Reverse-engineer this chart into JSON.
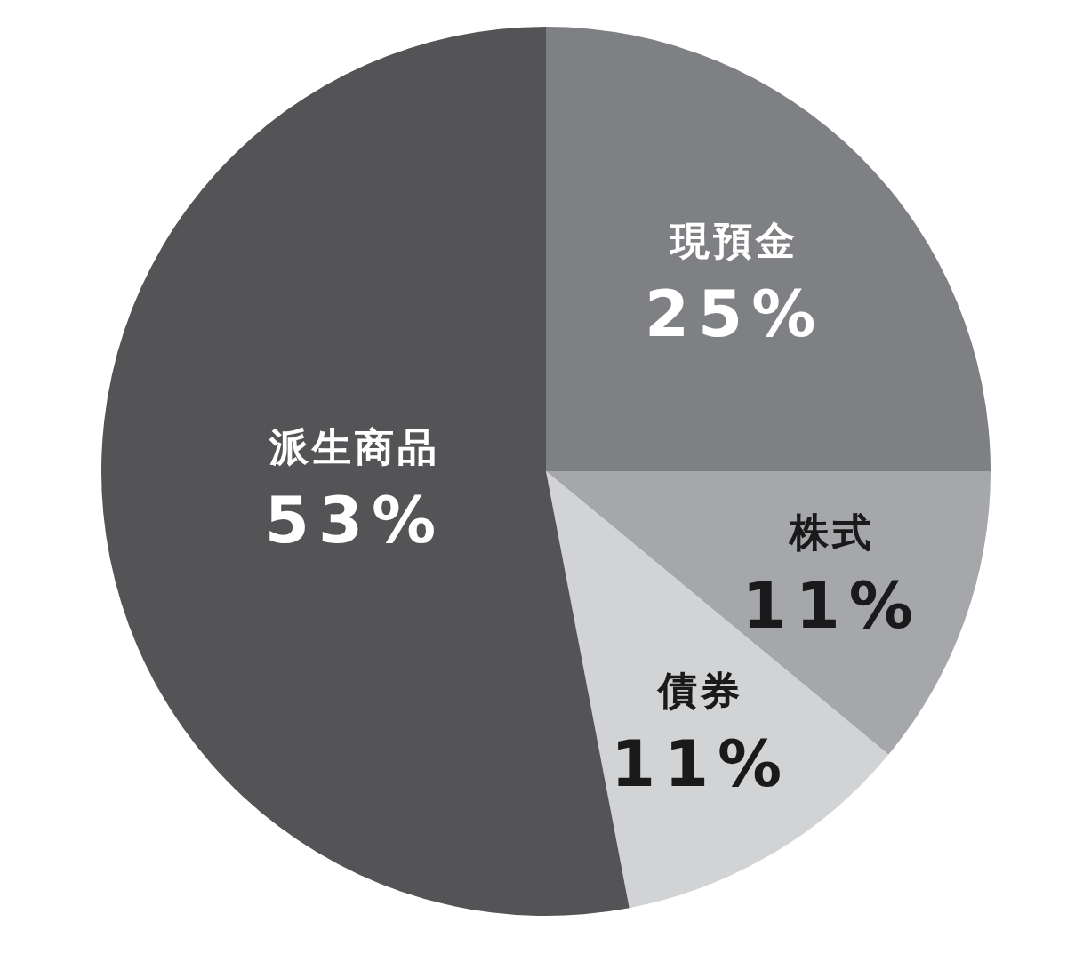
{
  "chart_data": {
    "type": "pie",
    "categories": [
      "現預金",
      "株式",
      "債券",
      "派生商品"
    ],
    "values": [
      25,
      11,
      11,
      53
    ],
    "value_labels": [
      "25%",
      "11%",
      "11%",
      "53%"
    ],
    "colors": [
      "#7f8083",
      "#a6a7aa",
      "#d2d3d5",
      "#545456"
    ]
  }
}
